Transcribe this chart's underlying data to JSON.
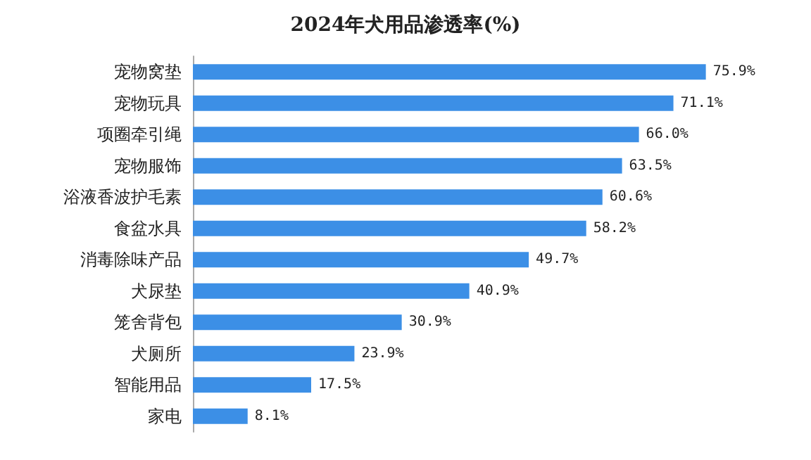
{
  "chart_data": {
    "type": "bar",
    "orientation": "horizontal",
    "title": "2024年犬用品渗透率(%)",
    "categories": [
      "宠物窝垫",
      "宠物玩具",
      "项圈牵引绳",
      "宠物服饰",
      "浴液香波护毛素",
      "食盆水具",
      "消毒除味产品",
      "犬尿垫",
      "笼舍背包",
      "犬厕所",
      "智能用品",
      "家电"
    ],
    "values": [
      75.9,
      71.1,
      66.0,
      63.5,
      60.6,
      58.2,
      49.7,
      40.9,
      30.9,
      23.9,
      17.5,
      8.1
    ],
    "value_labels": [
      "75.9%",
      "71.1%",
      "66.0%",
      "63.5%",
      "60.6%",
      "58.2%",
      "49.7%",
      "40.9%",
      "30.9%",
      "23.9%",
      "17.5%",
      "8.1%"
    ],
    "color": "#3c8fe6",
    "tick_labels": "y"
  }
}
